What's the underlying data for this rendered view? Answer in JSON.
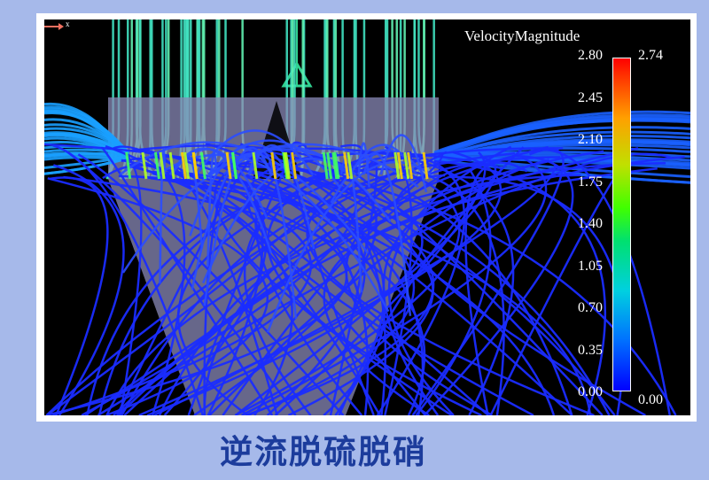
{
  "legend": {
    "title": "VelocityMagnitude",
    "ticks": [
      "2.80",
      "2.45",
      "2.10",
      "1.75",
      "1.40",
      "1.05",
      "0.70",
      "0.35",
      "0.00"
    ],
    "max_label": "2.74",
    "min_label": "0.00",
    "range": [
      0.0,
      2.8
    ],
    "colormap": [
      "#0000ff",
      "#00d0e0",
      "#40ff00",
      "#ffa000",
      "#ff0000"
    ]
  },
  "axis_label": "x",
  "caption": "逆流脱硫脱硝",
  "colors": {
    "background": "#a6b9ea",
    "caption": "#1c3c9c",
    "streamline_low": "#1a2cff",
    "streamline_inlet": "#40e0c0"
  }
}
